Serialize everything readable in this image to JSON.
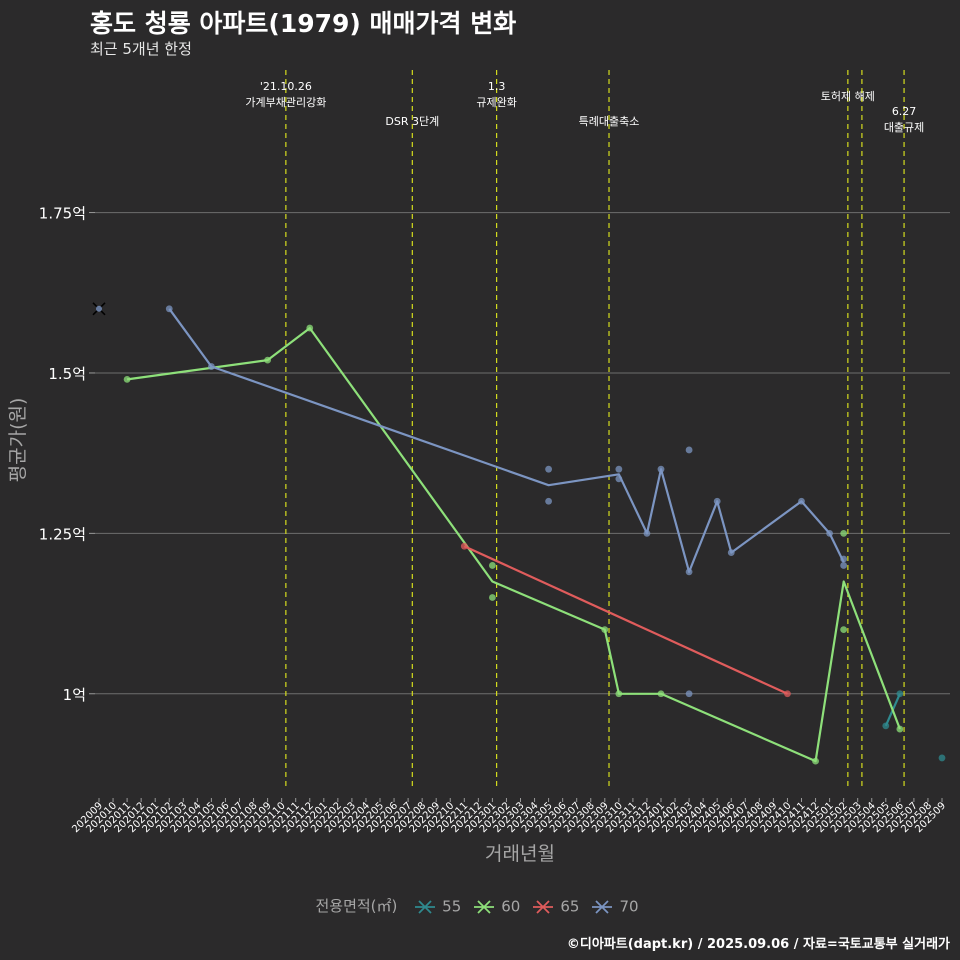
{
  "header": {
    "title": "홍도 청룡 아파트(1979) 매매가격 변화",
    "subtitle": "최근 5개년 한정"
  },
  "footer": {
    "credit": "©디아파트(dapt.kr) / 2025.09.06 / 자료=국토교통부 실거래가"
  },
  "legend": {
    "title": "전용면적(㎡)",
    "items": [
      {
        "label": "55",
        "color": "#2f8a8f"
      },
      {
        "label": "60",
        "color": "#8ee07a"
      },
      {
        "label": "65",
        "color": "#e05c5c"
      },
      {
        "label": "70",
        "color": "#7c95c2"
      }
    ]
  },
  "chart_data": {
    "type": "line",
    "title": "홍도 청룡 아파트(1979) 매매가격 변화",
    "xlabel": "거래년월",
    "ylabel": "평균가(원)",
    "ylim": [
      0.85,
      1.98
    ],
    "grid": true,
    "categories": [
      "202009",
      "202010",
      "202011",
      "202012",
      "202101",
      "202102",
      "202103",
      "202104",
      "202105",
      "202106",
      "202107",
      "202108",
      "202109",
      "202110",
      "202111",
      "202112",
      "202201",
      "202202",
      "202203",
      "202204",
      "202205",
      "202206",
      "202207",
      "202208",
      "202209",
      "202210",
      "202211",
      "202212",
      "202301",
      "202302",
      "202303",
      "202304",
      "202305",
      "202306",
      "202307",
      "202308",
      "202309",
      "202310",
      "202311",
      "202312",
      "202401",
      "202402",
      "202403",
      "202404",
      "202405",
      "202406",
      "202407",
      "202408",
      "202409",
      "202410",
      "202411",
      "202412",
      "202501",
      "202502",
      "202503",
      "202504",
      "202505",
      "202506",
      "202507",
      "202508",
      "202509"
    ],
    "yticks": [
      {
        "value": 1.0,
        "label": "1억"
      },
      {
        "value": 1.25,
        "label": "1.25억"
      },
      {
        "value": 1.5,
        "label": "1.5억"
      },
      {
        "value": 1.75,
        "label": "1.75억"
      }
    ],
    "events": [
      {
        "index": 13.3,
        "label": "'21.10.26\n가계부채관리강화",
        "row": 0
      },
      {
        "index": 22.3,
        "label": "DSR 3단계",
        "row": 2
      },
      {
        "index": 28.3,
        "label": "1.3\n규제완화",
        "row": 0
      },
      {
        "index": 36.3,
        "label": "특례대출축소",
        "row": 2
      },
      {
        "index": 53.3,
        "label": "토허제 해제",
        "row": 1
      },
      {
        "index": 54.3,
        "label": "",
        "row": 1
      },
      {
        "index": 57.3,
        "label": "6.27\n대출규제",
        "row": 3
      }
    ],
    "series": [
      {
        "name": "55",
        "color": "#2f8a8f",
        "points": [
          [
            56,
            0.95
          ],
          [
            57,
            1.0
          ],
          [
            60,
            0.9
          ]
        ],
        "line": [
          [
            56,
            0.95
          ],
          [
            57,
            1.0
          ]
        ]
      },
      {
        "name": "60",
        "color": "#8ee07a",
        "points": [
          [
            2,
            1.49
          ],
          [
            12,
            1.52
          ],
          [
            15,
            1.57
          ],
          [
            28,
            1.15
          ],
          [
            28,
            1.2
          ],
          [
            36,
            1.1
          ],
          [
            37,
            1.0
          ],
          [
            40,
            1.0
          ],
          [
            51,
            0.895
          ],
          [
            53,
            1.1
          ],
          [
            53,
            1.25
          ],
          [
            57,
            0.945
          ]
        ],
        "line": [
          [
            2,
            1.49
          ],
          [
            12,
            1.52
          ],
          [
            15,
            1.57
          ],
          [
            28,
            1.175
          ],
          [
            36,
            1.1
          ],
          [
            37,
            1.0
          ],
          [
            40,
            1.0
          ],
          [
            51,
            0.895
          ],
          [
            53,
            1.175
          ],
          [
            57,
            0.945
          ]
        ]
      },
      {
        "name": "65",
        "color": "#e05c5c",
        "points": [
          [
            26,
            1.23
          ],
          [
            49,
            1.0
          ]
        ],
        "line": [
          [
            26,
            1.23
          ],
          [
            49,
            1.0
          ]
        ]
      },
      {
        "name": "70",
        "color": "#7c95c2",
        "points": [
          [
            5,
            1.6
          ],
          [
            8,
            1.51
          ],
          [
            32,
            1.35
          ],
          [
            32,
            1.3
          ],
          [
            37,
            1.35
          ],
          [
            37,
            1.335
          ],
          [
            39,
            1.25
          ],
          [
            40,
            1.35
          ],
          [
            42,
            1.38
          ],
          [
            42,
            1.19
          ],
          [
            42,
            1.0
          ],
          [
            44,
            1.3
          ],
          [
            45,
            1.22
          ],
          [
            50,
            1.3
          ],
          [
            52,
            1.25
          ],
          [
            53,
            1.2
          ],
          [
            53,
            1.21
          ]
        ],
        "line": [
          [
            5,
            1.6
          ],
          [
            8,
            1.51
          ],
          [
            32,
            1.325
          ],
          [
            37,
            1.342
          ],
          [
            39,
            1.25
          ],
          [
            40,
            1.35
          ],
          [
            42,
            1.19
          ],
          [
            44,
            1.3
          ],
          [
            45,
            1.22
          ],
          [
            50,
            1.3
          ],
          [
            52,
            1.25
          ],
          [
            53,
            1.205
          ]
        ],
        "crosses": [
          [
            0,
            1.6
          ]
        ]
      }
    ]
  }
}
